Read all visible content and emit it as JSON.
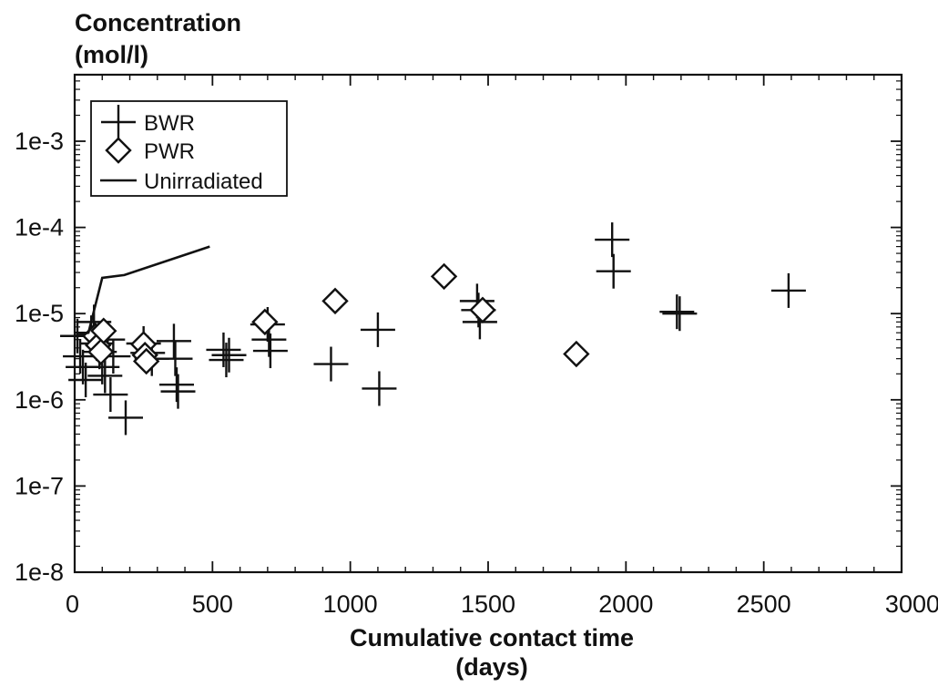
{
  "chart_data": {
    "type": "scatter",
    "title": "",
    "ylabel_line1": "Concentration",
    "ylabel_line2": "(mol/l)",
    "xlabel_line1": "Cumulative contact time",
    "xlabel_line2": "(days)",
    "xlim": [
      0,
      3000
    ],
    "ylim": [
      1e-08,
      0.005
    ],
    "yscale": "log",
    "x_ticks": [
      "0",
      "500",
      "1000",
      "1500",
      "2000",
      "2500",
      "3000"
    ],
    "y_ticks": [
      "1e-8",
      "1e-7",
      "1e-6",
      "1e-5",
      "1e-4",
      "1e-3"
    ],
    "legend_position": "top-left",
    "grid": false,
    "series": [
      {
        "name": "BWR",
        "marker": "plus",
        "points": [
          [
            10,
            5.5e-06
          ],
          [
            20,
            3.2e-06
          ],
          [
            30,
            2.4e-06
          ],
          [
            40,
            1.7e-06
          ],
          [
            60,
            6e-06
          ],
          [
            70,
            8e-06
          ],
          [
            80,
            4.5e-06
          ],
          [
            90,
            3.6e-06
          ],
          [
            100,
            2.4e-06
          ],
          [
            110,
            1.9e-06
          ],
          [
            120,
            5e-06
          ],
          [
            130,
            1.15e-06
          ],
          [
            140,
            3.2e-06
          ],
          [
            185,
            6.2e-07
          ],
          [
            250,
            4.5e-06
          ],
          [
            265,
            3.5e-06
          ],
          [
            280,
            3e-06
          ],
          [
            360,
            4.8e-06
          ],
          [
            365,
            3e-06
          ],
          [
            370,
            1.5e-06
          ],
          [
            375,
            1.25e-06
          ],
          [
            540,
            3.8e-06
          ],
          [
            550,
            2.9e-06
          ],
          [
            560,
            3.3e-06
          ],
          [
            700,
            7.5e-06
          ],
          [
            705,
            5e-06
          ],
          [
            710,
            3.7e-06
          ],
          [
            930,
            2.6e-06
          ],
          [
            1100,
            6.5e-06
          ],
          [
            1105,
            1.35e-06
          ],
          [
            1460,
            1.4e-05
          ],
          [
            1465,
            1.1e-05
          ],
          [
            1470,
            8e-06
          ],
          [
            1950,
            7.2e-05
          ],
          [
            1955,
            3.1e-05
          ],
          [
            2185,
            1.05e-05
          ],
          [
            2195,
            1e-05
          ],
          [
            2590,
            1.85e-05
          ]
        ]
      },
      {
        "name": "PWR",
        "marker": "diamond",
        "points": [
          [
            75,
            5.5e-06
          ],
          [
            85,
            4.3e-06
          ],
          [
            95,
            3.6e-06
          ],
          [
            105,
            6.3e-06
          ],
          [
            250,
            4.4e-06
          ],
          [
            255,
            3.3e-06
          ],
          [
            260,
            2.8e-06
          ],
          [
            690,
            8e-06
          ],
          [
            945,
            1.4e-05
          ],
          [
            1340,
            2.7e-05
          ],
          [
            1480,
            1.1e-05
          ],
          [
            1820,
            3.4e-06
          ]
        ]
      },
      {
        "name": "Unirradiated",
        "marker": "line",
        "points": [
          [
            0,
            5.5e-06
          ],
          [
            50,
            6e-06
          ],
          [
            100,
            2.6e-05
          ],
          [
            180,
            2.8e-05
          ],
          [
            490,
            6e-05
          ]
        ]
      }
    ]
  }
}
